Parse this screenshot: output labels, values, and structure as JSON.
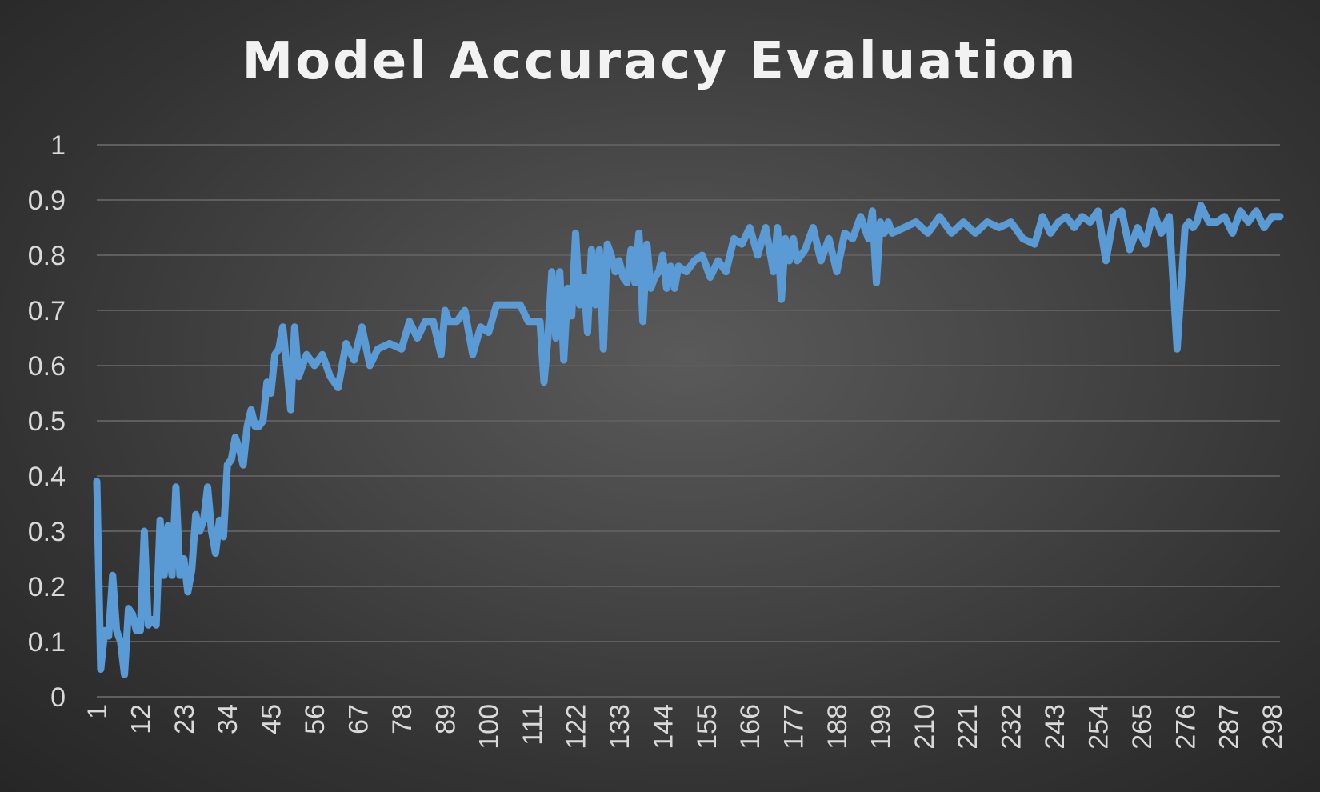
{
  "chart_data": {
    "type": "line",
    "title": "Model Accuracy Evaluation",
    "xlabel": "",
    "ylabel": "",
    "ylim": [
      0,
      1
    ],
    "yticks": [
      "0",
      "0.1",
      "0.2",
      "0.3",
      "0.4",
      "0.5",
      "0.6",
      "0.7",
      "0.8",
      "0.9",
      "1"
    ],
    "xticks": [
      1,
      12,
      23,
      34,
      45,
      56,
      67,
      78,
      89,
      100,
      111,
      122,
      133,
      144,
      155,
      166,
      177,
      188,
      199,
      210,
      221,
      232,
      243,
      254,
      265,
      276,
      287,
      298
    ],
    "grid": "horizontal",
    "legend": "none",
    "colors": {
      "line": "#5b9bd5",
      "grid": "#5e5e5e",
      "text": "#d9d9d9",
      "title": "#f2f2f2"
    },
    "series": [
      {
        "x": [
          1,
          2,
          3,
          4,
          5,
          6,
          7,
          8,
          9,
          10,
          11,
          12,
          13,
          14,
          15,
          16,
          17,
          18,
          19,
          20,
          21,
          22,
          23,
          24,
          25,
          26,
          27,
          28,
          29,
          30,
          31,
          32,
          33,
          34,
          35,
          36,
          37,
          38,
          39,
          40,
          41,
          42,
          43,
          44,
          45,
          46,
          47,
          48,
          49,
          50,
          51,
          52,
          54,
          56,
          58,
          60,
          62,
          64,
          66,
          68,
          70,
          72,
          75,
          78,
          80,
          82,
          84,
          86,
          88,
          89,
          90,
          92,
          94,
          96,
          98,
          100,
          102,
          104,
          106,
          108,
          110,
          111,
          113,
          114,
          115,
          116,
          117,
          118,
          119,
          120,
          121,
          122,
          123,
          124,
          125,
          126,
          127,
          128,
          129,
          130,
          131,
          132,
          133,
          134,
          135,
          136,
          137,
          138,
          139,
          140,
          141,
          142,
          143,
          144,
          145,
          146,
          147,
          148,
          150,
          152,
          154,
          156,
          158,
          160,
          162,
          164,
          166,
          168,
          170,
          172,
          173,
          174,
          175,
          176,
          177,
          178,
          180,
          182,
          184,
          186,
          188,
          190,
          192,
          194,
          196,
          197,
          198,
          199,
          200,
          201,
          202,
          205,
          208,
          211,
          214,
          217,
          220,
          223,
          226,
          229,
          232,
          235,
          238,
          240,
          242,
          244,
          246,
          248,
          250,
          252,
          254,
          256,
          258,
          260,
          262,
          264,
          266,
          268,
          270,
          272,
          274,
          276,
          277,
          278,
          279,
          280,
          282,
          284,
          286,
          288,
          290,
          292,
          294,
          296,
          298,
          300
        ],
        "values": [
          0.39,
          0.05,
          0.12,
          0.11,
          0.22,
          0.12,
          0.1,
          0.04,
          0.16,
          0.15,
          0.12,
          0.12,
          0.3,
          0.13,
          0.14,
          0.13,
          0.32,
          0.22,
          0.31,
          0.22,
          0.38,
          0.22,
          0.25,
          0.19,
          0.23,
          0.33,
          0.3,
          0.32,
          0.38,
          0.3,
          0.26,
          0.32,
          0.29,
          0.42,
          0.43,
          0.47,
          0.45,
          0.42,
          0.49,
          0.52,
          0.49,
          0.49,
          0.5,
          0.57,
          0.55,
          0.62,
          0.63,
          0.67,
          0.6,
          0.52,
          0.67,
          0.58,
          0.62,
          0.6,
          0.62,
          0.58,
          0.56,
          0.64,
          0.61,
          0.67,
          0.6,
          0.63,
          0.64,
          0.63,
          0.68,
          0.65,
          0.68,
          0.68,
          0.62,
          0.7,
          0.68,
          0.68,
          0.7,
          0.62,
          0.67,
          0.66,
          0.71,
          0.71,
          0.71,
          0.71,
          0.68,
          0.68,
          0.68,
          0.57,
          0.65,
          0.77,
          0.65,
          0.77,
          0.61,
          0.74,
          0.69,
          0.84,
          0.71,
          0.76,
          0.66,
          0.81,
          0.71,
          0.81,
          0.63,
          0.82,
          0.8,
          0.77,
          0.79,
          0.76,
          0.75,
          0.81,
          0.75,
          0.84,
          0.68,
          0.82,
          0.74,
          0.76,
          0.77,
          0.8,
          0.74,
          0.78,
          0.74,
          0.78,
          0.77,
          0.79,
          0.8,
          0.76,
          0.79,
          0.77,
          0.83,
          0.82,
          0.85,
          0.8,
          0.85,
          0.77,
          0.85,
          0.72,
          0.83,
          0.79,
          0.83,
          0.79,
          0.81,
          0.85,
          0.79,
          0.83,
          0.77,
          0.84,
          0.83,
          0.87,
          0.83,
          0.88,
          0.75,
          0.86,
          0.84,
          0.86,
          0.84,
          0.85,
          0.86,
          0.84,
          0.87,
          0.84,
          0.86,
          0.84,
          0.86,
          0.85,
          0.86,
          0.83,
          0.82,
          0.87,
          0.84,
          0.86,
          0.87,
          0.85,
          0.87,
          0.86,
          0.88,
          0.79,
          0.87,
          0.88,
          0.81,
          0.85,
          0.82,
          0.88,
          0.84,
          0.87,
          0.63,
          0.85,
          0.86,
          0.85,
          0.86,
          0.89,
          0.86,
          0.86,
          0.87,
          0.84,
          0.88,
          0.86,
          0.88,
          0.85,
          0.87,
          0.87
        ]
      }
    ]
  }
}
